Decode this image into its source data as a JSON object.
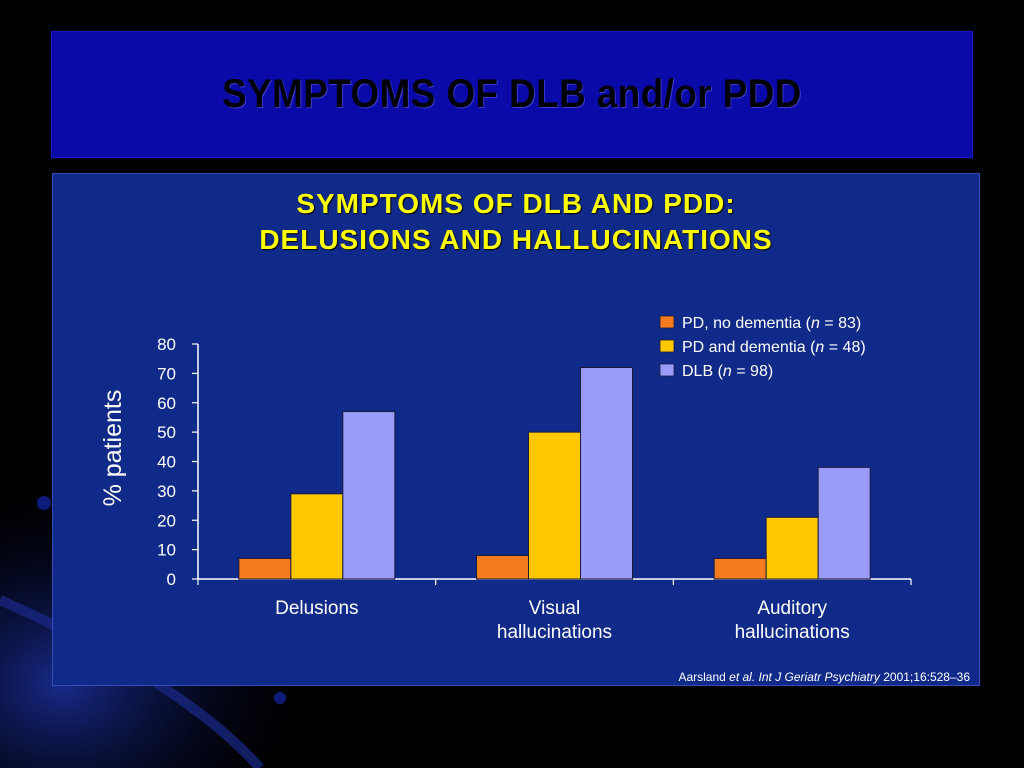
{
  "slide": {
    "title": "SYMPTOMS OF DLB and/or PDD"
  },
  "chart": {
    "title_line1": "SYMPTOMS OF DLB AND PDD:",
    "title_line2": "DELUSIONS AND HALLUCINATIONS"
  },
  "citation": {
    "author": "Aarsland",
    "etal": "et al.",
    "journal": "Int J Geriatr Psychiatry",
    "ref": "2001;16:528–36"
  },
  "colors": {
    "series_pd_no_dementia": "#f47c1e",
    "series_pd_dementia": "#ffc800",
    "series_dlb": "#9b9bfc",
    "title_yellow": "#ffff00",
    "panel_blue": "#102a8a"
  },
  "chart_data": {
    "type": "bar",
    "title": "SYMPTOMS OF DLB AND PDD: DELUSIONS AND HALLUCINATIONS",
    "xlabel": "",
    "ylabel": "% patients",
    "ylim": [
      0,
      80
    ],
    "yticks": [
      0,
      10,
      20,
      30,
      40,
      50,
      60,
      70,
      80
    ],
    "categories": [
      [
        "Delusions"
      ],
      [
        "Visual",
        "hallucinations"
      ],
      [
        "Auditory",
        "hallucinations"
      ]
    ],
    "series": [
      {
        "name": "PD, no dementia",
        "n": "83",
        "color": "#f47c1e",
        "values": [
          7,
          8,
          7
        ]
      },
      {
        "name": "PD and dementia",
        "n": "48",
        "color": "#ffc800",
        "values": [
          29,
          50,
          21
        ]
      },
      {
        "name": "DLB",
        "n": "98",
        "color": "#9b9bfc",
        "values": [
          57,
          72,
          38
        ]
      }
    ],
    "grid": false,
    "legend": "top-right"
  }
}
